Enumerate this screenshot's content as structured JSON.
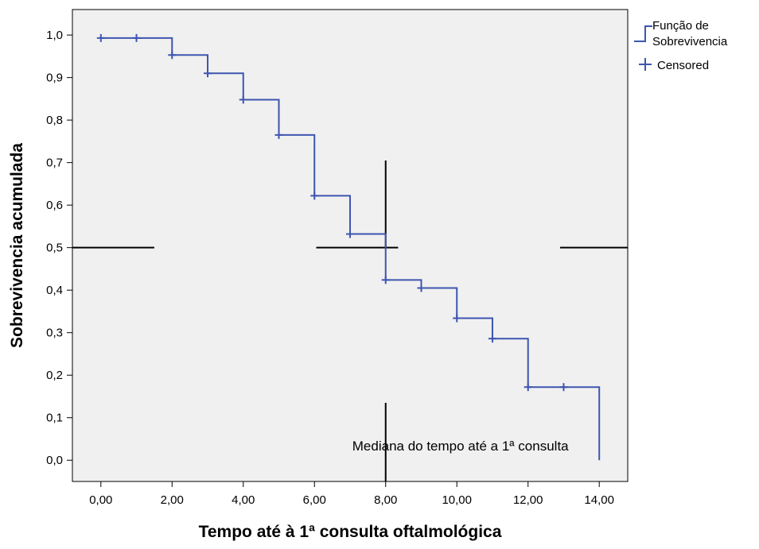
{
  "chart_data": {
    "type": "line",
    "subtype": "kaplan-meier-step",
    "xlabel": "Tempo até à 1ª consulta oftalmológica",
    "ylabel": "Sobrevivencia acumulada",
    "xlim": [
      -0.8,
      14.8
    ],
    "ylim": [
      -0.05,
      1.06
    ],
    "x_ticks": [
      0,
      2,
      4,
      6,
      8,
      10,
      12,
      14
    ],
    "x_tick_labels": [
      "0,00",
      "2,00",
      "4,00",
      "6,00",
      "8,00",
      "10,00",
      "12,00",
      "14,00"
    ],
    "y_ticks": [
      0,
      0.1,
      0.2,
      0.3,
      0.4,
      0.5,
      0.6,
      0.7,
      0.8,
      0.9,
      1.0
    ],
    "y_tick_labels": [
      "0,0",
      "0,1",
      "0,2",
      "0,3",
      "0,4",
      "0,5",
      "0,6",
      "0,7",
      "0,8",
      "0,9",
      "1,0"
    ],
    "grid": false,
    "background_color": "#f0f0f0",
    "series": [
      {
        "name": "Função de Sobrevivencia",
        "color": "#3e55b0",
        "step": [
          [
            0,
            0.993
          ],
          [
            2,
            0.953
          ],
          [
            3,
            0.91
          ],
          [
            4,
            0.848
          ],
          [
            5,
            0.765
          ],
          [
            6,
            0.622
          ],
          [
            7,
            0.532
          ],
          [
            8,
            0.424
          ],
          [
            9,
            0.405
          ],
          [
            10,
            0.334
          ],
          [
            11,
            0.286
          ],
          [
            12,
            0.172
          ],
          [
            14,
            0.0
          ]
        ]
      },
      {
        "name": "Censored",
        "color": "#3e55b0",
        "points": [
          [
            0,
            0.993
          ],
          [
            1,
            0.993
          ],
          [
            2,
            0.953
          ],
          [
            3,
            0.91
          ],
          [
            4,
            0.848
          ],
          [
            5,
            0.765
          ],
          [
            6,
            0.622
          ],
          [
            7,
            0.532
          ],
          [
            8,
            0.424
          ],
          [
            9,
            0.405
          ],
          [
            10,
            0.334
          ],
          [
            11,
            0.286
          ],
          [
            12,
            0.172
          ],
          [
            13,
            0.172
          ]
        ]
      }
    ],
    "reference_lines": {
      "color": "#000000",
      "horizontal": [
        {
          "y": 0.5,
          "x_from": -0.8,
          "x_to": 1.5
        },
        {
          "y": 0.5,
          "x_from": 6.05,
          "x_to": 8.35
        },
        {
          "y": 0.5,
          "x_from": 12.9,
          "x_to": 14.8
        }
      ],
      "vertical": [
        {
          "x": 8,
          "y_from": 0.5,
          "y_to": 0.705
        },
        {
          "x": 8,
          "y_from": -0.05,
          "y_to": 0.135
        }
      ]
    },
    "annotations": [
      {
        "text": "Mediana do tempo até a 1ª consulta",
        "x": 10.1,
        "y": 0.023
      }
    ],
    "legend": {
      "position": "right",
      "entries": [
        "Função de Sobrevivencia",
        "Censored"
      ]
    }
  }
}
